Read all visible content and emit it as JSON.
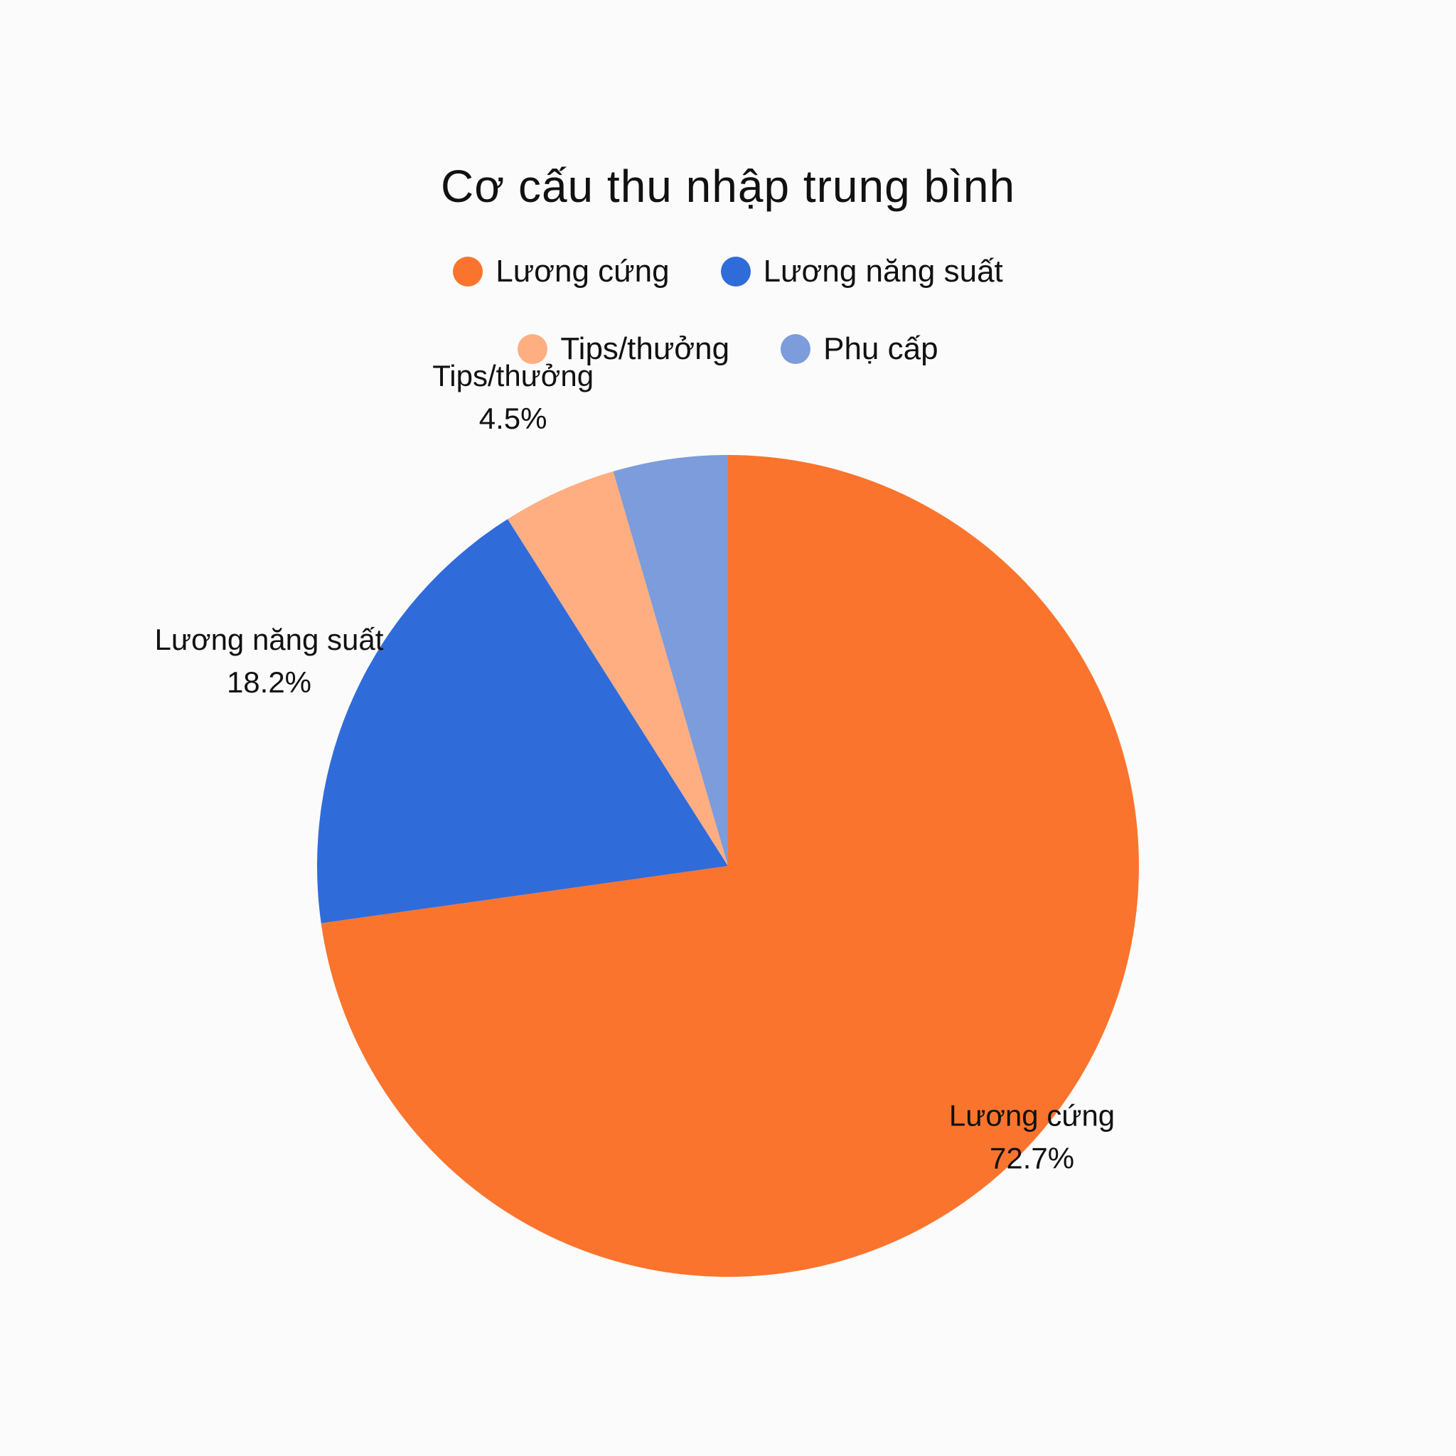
{
  "chart_data": {
    "type": "pie",
    "title": "Cơ cấu thu nhập trung bình",
    "legend_position": "top",
    "start_angle_deg": 0,
    "direction": "clockwise",
    "slices": [
      {
        "label": "Lương cứng",
        "value": 72.7,
        "value_label": "72.7%",
        "color": "#fa742d"
      },
      {
        "label": "Lương năng suất",
        "value": 18.2,
        "value_label": "18.2%",
        "color": "#306bda"
      },
      {
        "label": "Tips/thưởng",
        "value": 4.5,
        "value_label": "4.5%",
        "color": "#ffae82"
      },
      {
        "label": "Phụ cấp",
        "value": 4.5,
        "value_label": "",
        "color": "#7c9cdb"
      }
    ],
    "legend": [
      {
        "label": "Lương cứng",
        "color": "#fa742d"
      },
      {
        "label": "Lương năng suất",
        "color": "#306bda"
      },
      {
        "label": "Tips/thưởng",
        "color": "#ffae82"
      },
      {
        "label": "Phụ cấp",
        "color": "#7c9cdb"
      }
    ]
  }
}
